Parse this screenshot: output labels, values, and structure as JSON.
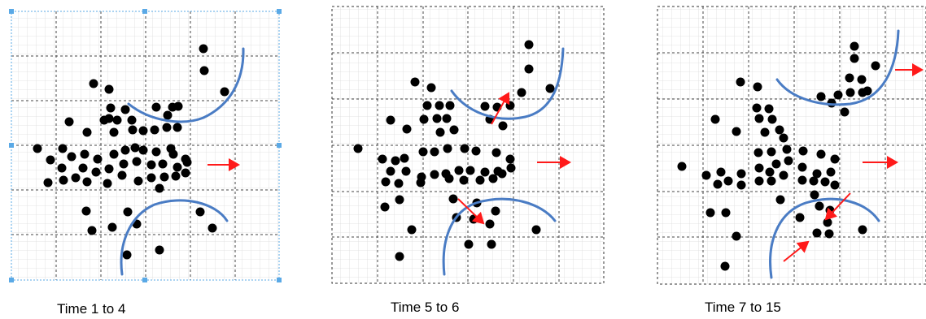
{
  "colors": {
    "grid_minor": "#d9d9d9",
    "grid_major": "#444444",
    "dot": "#000000",
    "curve": "#4a7cc4",
    "arrow": "#ff1a1a",
    "selection": "#5aa9e6"
  },
  "panels": [
    {
      "id": "p1",
      "caption": "Time 1 to 4",
      "selected": true
    },
    {
      "id": "p2",
      "caption": "Time 5 to 6",
      "selected": false
    },
    {
      "id": "p3",
      "caption": "Time 7 to 15",
      "selected": false
    }
  ]
}
